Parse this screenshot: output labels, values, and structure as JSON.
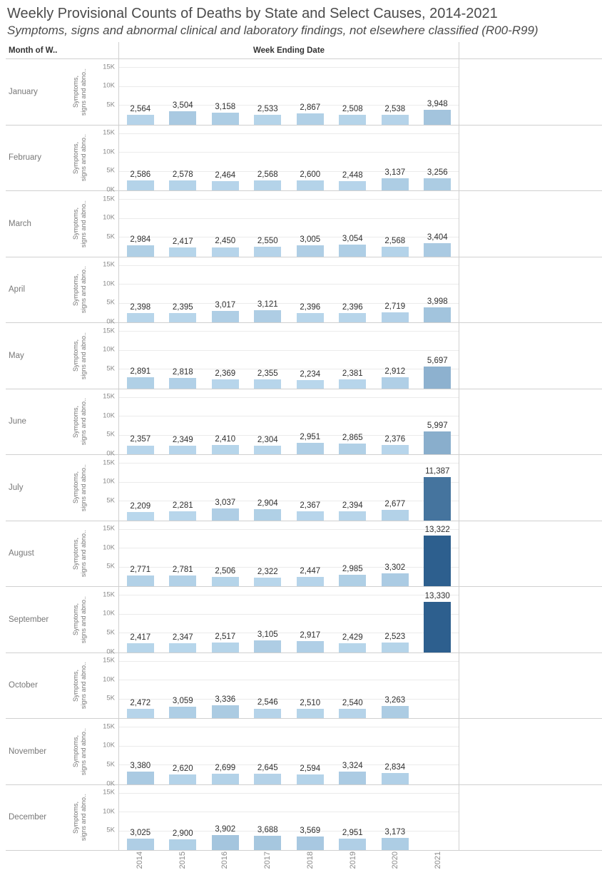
{
  "header": {
    "row_dimension_label": "Month of W..",
    "column_axis_label": "Week Ending Date"
  },
  "row_axis_title": {
    "line1": "Symptoms,",
    "line2": "signs and abno.."
  },
  "colors": {
    "bar_low": "#b9d7ec",
    "bar_high": "#2d5f8e",
    "scale_min": 2209,
    "scale_max": 13330,
    "grid": "#ebebeb",
    "border": "#d0d0d0",
    "value_label": "#2f2f2f",
    "axis_text": "#8a8a8a"
  },
  "chart_data": {
    "type": "bar",
    "title": "Weekly Provisional Counts of Deaths by State and Select Causes, 2014-2021",
    "subtitle": "Symptoms, signs and abnormal clinical and laboratory findings, not elsewhere classified (R00-R99)",
    "xlabel": "Week Ending Date",
    "ylabel": "Symptoms, signs and abno..",
    "legend": "none",
    "grid": "horizontal",
    "categories": [
      "2014",
      "2015",
      "2016",
      "2017",
      "2018",
      "2019",
      "2020",
      "2021"
    ],
    "ylim": [
      0,
      17200
    ],
    "yticks": [
      {
        "label": "15K",
        "value": 15000
      },
      {
        "label": "10K",
        "value": 10000
      },
      {
        "label": "5K",
        "value": 5000
      },
      {
        "label": "0K",
        "value": 0
      }
    ],
    "rows": [
      {
        "month": "January",
        "values": [
          2564,
          3504,
          3158,
          2533,
          2867,
          2508,
          2538,
          3948
        ],
        "show_zero_tick": false
      },
      {
        "month": "February",
        "values": [
          2586,
          2578,
          2464,
          2568,
          2600,
          2448,
          3137,
          3256
        ],
        "show_zero_tick": true
      },
      {
        "month": "March",
        "values": [
          2984,
          2417,
          2450,
          2550,
          3005,
          3054,
          2568,
          3404
        ],
        "show_zero_tick": false
      },
      {
        "month": "April",
        "values": [
          2398,
          2395,
          3017,
          3121,
          2396,
          2396,
          2719,
          3998
        ],
        "show_zero_tick": true
      },
      {
        "month": "May",
        "values": [
          2891,
          2818,
          2369,
          2355,
          2234,
          2381,
          2912,
          5697
        ],
        "show_zero_tick": false
      },
      {
        "month": "June",
        "values": [
          2357,
          2349,
          2410,
          2304,
          2951,
          2865,
          2376,
          5997
        ],
        "show_zero_tick": true
      },
      {
        "month": "July",
        "values": [
          2209,
          2281,
          3037,
          2904,
          2367,
          2394,
          2677,
          11387
        ],
        "show_zero_tick": false
      },
      {
        "month": "August",
        "values": [
          2771,
          2781,
          2506,
          2322,
          2447,
          2985,
          3302,
          13322
        ],
        "show_zero_tick": false
      },
      {
        "month": "September",
        "values": [
          2417,
          2347,
          2517,
          3105,
          2917,
          2429,
          2523,
          13330
        ],
        "show_zero_tick": true
      },
      {
        "month": "October",
        "values": [
          2472,
          3059,
          3336,
          2546,
          2510,
          2540,
          3263,
          null
        ],
        "show_zero_tick": false
      },
      {
        "month": "November",
        "values": [
          3380,
          2620,
          2699,
          2645,
          2594,
          3324,
          2834,
          null
        ],
        "show_zero_tick": true
      },
      {
        "month": "December",
        "values": [
          3025,
          2900,
          3902,
          3688,
          3569,
          2951,
          3173,
          null
        ],
        "show_zero_tick": false
      }
    ]
  }
}
